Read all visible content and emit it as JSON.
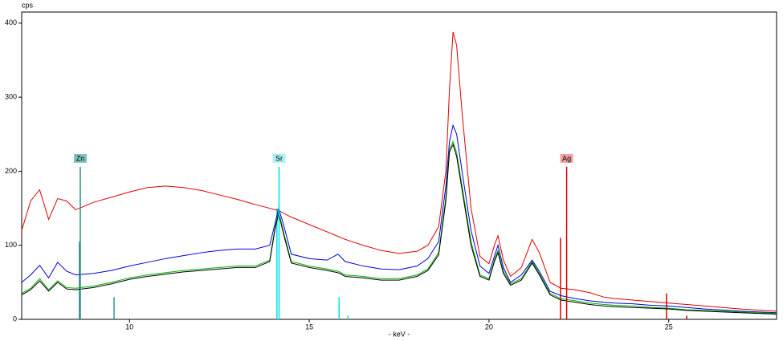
{
  "chart_data": {
    "type": "line",
    "ylabel": "cps",
    "xlabel": "- keV -",
    "xlim": [
      7,
      28
    ],
    "ylim": [
      0,
      415
    ],
    "xticks": [
      10,
      15,
      20,
      25
    ],
    "yticks": [
      0,
      100,
      200,
      300,
      400
    ],
    "x": [
      7.0,
      7.25,
      7.5,
      7.75,
      8.0,
      8.25,
      8.5,
      9.0,
      9.5,
      10.0,
      10.5,
      11.0,
      11.5,
      12.0,
      12.5,
      13.0,
      13.5,
      13.9,
      14.05,
      14.15,
      14.3,
      14.5,
      15.0,
      15.5,
      15.8,
      16.0,
      16.5,
      17.0,
      17.5,
      18.0,
      18.3,
      18.6,
      18.8,
      18.9,
      19.0,
      19.1,
      19.25,
      19.5,
      19.75,
      20.0,
      20.15,
      20.25,
      20.4,
      20.6,
      20.9,
      21.2,
      21.4,
      21.7,
      22.0,
      22.4,
      22.8,
      23.2,
      23.5,
      24.0,
      24.5,
      25.0,
      25.5,
      26.0,
      27.0,
      28.0
    ],
    "series": [
      {
        "color": "#e00000",
        "values": [
          120,
          160,
          175,
          135,
          163,
          160,
          148,
          158,
          165,
          172,
          178,
          180,
          178,
          174,
          168,
          162,
          155,
          150,
          148,
          147,
          143,
          138,
          128,
          118,
          112,
          108,
          100,
          93,
          89,
          92,
          100,
          125,
          200,
          310,
          388,
          370,
          280,
          150,
          85,
          75,
          100,
          113,
          80,
          58,
          70,
          108,
          90,
          50,
          42,
          40,
          36,
          30,
          28,
          26,
          24,
          22,
          20,
          18,
          14,
          11
        ]
      },
      {
        "color": "#0000dd",
        "values": [
          50,
          60,
          73,
          56,
          77,
          65,
          60,
          62,
          66,
          72,
          77,
          82,
          86,
          90,
          93,
          95,
          95,
          100,
          130,
          150,
          125,
          88,
          82,
          80,
          88,
          78,
          72,
          68,
          67,
          72,
          82,
          105,
          180,
          240,
          262,
          250,
          200,
          120,
          72,
          62,
          85,
          100,
          70,
          50,
          60,
          80,
          65,
          38,
          32,
          28,
          25,
          23,
          22,
          21,
          19,
          18,
          16,
          14,
          11,
          9
        ]
      },
      {
        "color": "#00b000",
        "values": [
          35,
          42,
          55,
          40,
          52,
          43,
          42,
          45,
          50,
          56,
          60,
          63,
          66,
          68,
          70,
          72,
          72,
          80,
          125,
          145,
          115,
          78,
          72,
          68,
          65,
          60,
          58,
          55,
          55,
          60,
          68,
          90,
          165,
          230,
          240,
          225,
          180,
          105,
          60,
          55,
          80,
          93,
          65,
          48,
          55,
          78,
          62,
          35,
          28,
          25,
          22,
          20,
          19,
          18,
          16,
          15,
          13,
          12,
          10,
          8
        ]
      },
      {
        "color": "#000000",
        "values": [
          33,
          40,
          52,
          38,
          50,
          41,
          40,
          43,
          48,
          54,
          58,
          61,
          64,
          66,
          68,
          70,
          70,
          78,
          122,
          143,
          112,
          76,
          70,
          66,
          63,
          58,
          56,
          53,
          53,
          58,
          66,
          87,
          160,
          226,
          236,
          220,
          175,
          100,
          58,
          53,
          78,
          90,
          62,
          46,
          53,
          76,
          60,
          33,
          26,
          23,
          20,
          18,
          17,
          16,
          15,
          14,
          12,
          11,
          9,
          7
        ]
      }
    ],
    "markers": [
      {
        "label": "Zn",
        "x": 8.63,
        "height": 206,
        "color": "#2a8a86",
        "box": "#7ec5c0"
      },
      {
        "label": "Sr",
        "x": 14.16,
        "height": 206,
        "color": "#00e0e8",
        "box": "#a8f0f4"
      },
      {
        "label": "Ag",
        "x": 22.16,
        "height": 206,
        "color": "#d00000",
        "box": "#f0a0a0"
      }
    ],
    "lines": [
      {
        "x": 8.61,
        "height": 105,
        "color": "#1a7a76"
      },
      {
        "x": 9.57,
        "height": 30,
        "color": "#2a9a96"
      },
      {
        "x": 14.1,
        "height": 150,
        "color": "#00e0e8"
      },
      {
        "x": 15.83,
        "height": 30,
        "color": "#00e0e8"
      },
      {
        "x": 16.08,
        "height": 5,
        "color": "#00e0e8"
      },
      {
        "x": 21.99,
        "height": 110,
        "color": "#d00000"
      },
      {
        "x": 24.94,
        "height": 35,
        "color": "#d00000"
      },
      {
        "x": 25.5,
        "height": 5,
        "color": "#d00000"
      }
    ]
  }
}
